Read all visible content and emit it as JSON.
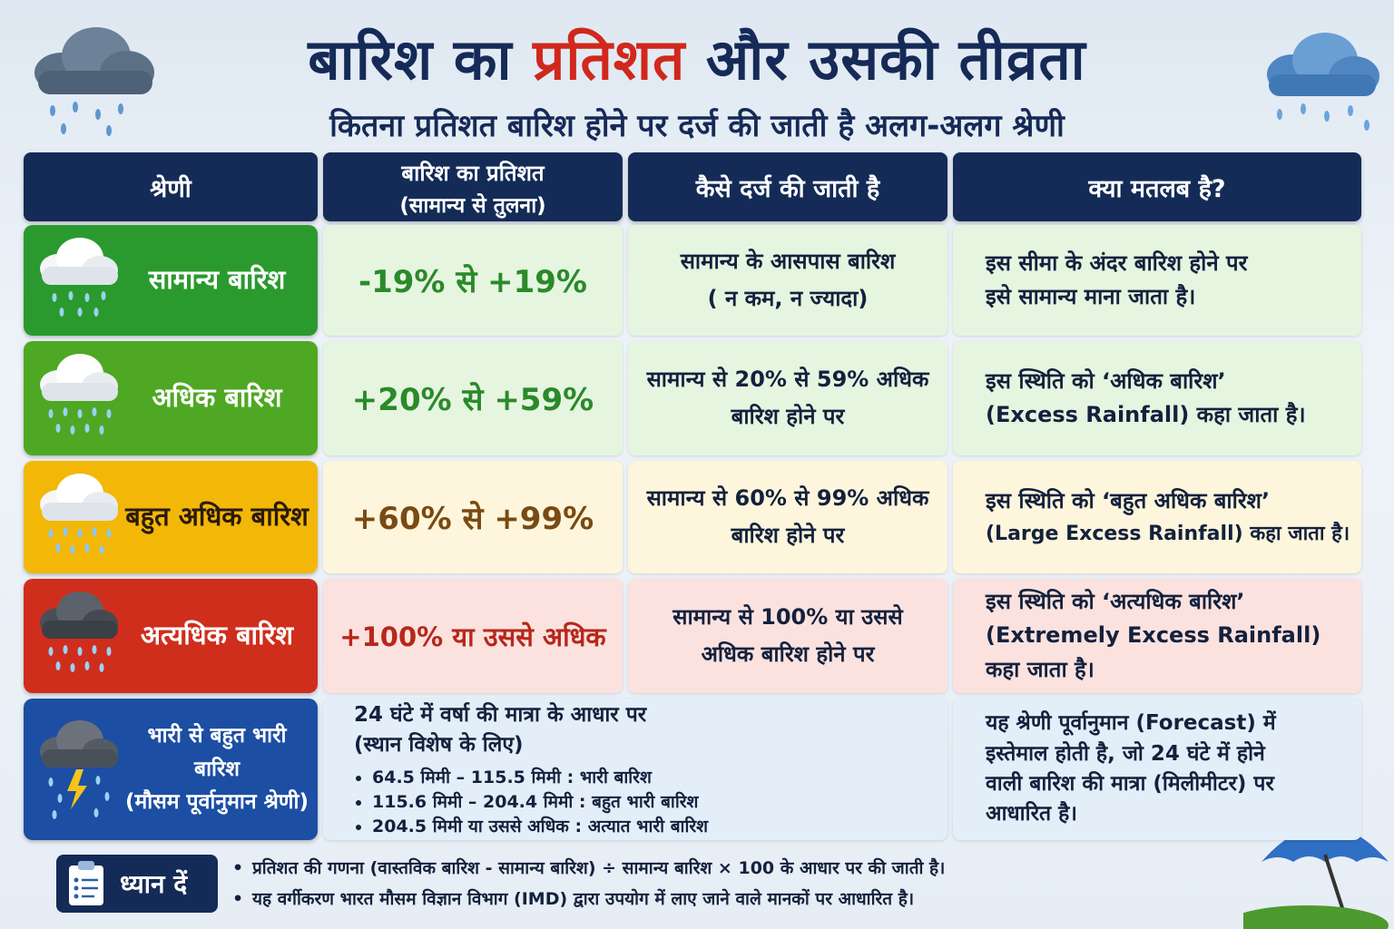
{
  "title_part1": "बारिश का ",
  "title_highlight": "प्रतिशत",
  "title_part2": " और उसकी तीव्रता",
  "subtitle": "कितना प्रतिशत बारिश होने पर दर्ज की जाती है अलग-अलग श्रेणी",
  "headers": {
    "category": "श्रेणी",
    "percent_line1": "बारिश का प्रतिशत",
    "percent_line2": "(सामान्य से तुलना)",
    "how": "कैसे दर्ज की जाती है",
    "meaning": "क्या मतलब है?"
  },
  "rows": [
    {
      "category": "सामान्य बारिश",
      "percent": "-19% से +19%",
      "how_1": "सामान्य के आसपास बारिश",
      "how_2": "( न कम, न ज्यादा)",
      "meaning_1": "इस सीमा के अंदर बारिश होने पर",
      "meaning_2": "इसे सामान्य माना जाता है।",
      "color": "#2a9a2e"
    },
    {
      "category": "अधिक बारिश",
      "percent": "+20% से +59%",
      "how_1": "सामान्य से 20% से 59% अधिक",
      "how_2": "बारिश होने पर",
      "meaning_1": "इस स्थिति को ‘अधिक बारिश’",
      "meaning_2": "(Excess Rainfall) कहा जाता है।",
      "color": "#4ea823"
    },
    {
      "category": "बहुत अधिक बारिश",
      "percent": "+60% से +99%",
      "how_1": "सामान्य से 60% से 99% अधिक",
      "how_2": "बारिश होने पर",
      "meaning_1": "इस स्थिति को ‘बहुत अधिक बारिश’",
      "meaning_2": "(Large Excess Rainfall) कहा जाता है।",
      "color": "#f2b707"
    },
    {
      "category": "अत्यधिक बारिश",
      "percent": "+100% या उससे अधिक",
      "how_1": "सामान्य से 100% या उससे",
      "how_2": "अधिक बारिश होने पर",
      "meaning_1": "इस स्थिति को ‘अत्यधिक बारिश’",
      "meaning_2": "(Extremely Excess Rainfall)",
      "meaning_3": "कहा जाता है।",
      "color": "#cf2e1d"
    }
  ],
  "heavy": {
    "category_1": "भारी से बहुत भारी बारिश",
    "category_2": "(मौसम पूर्वानुमान श्रेणी)",
    "intro_1": "24 घंटे में वर्षा की मात्रा के आधार पर",
    "intro_2": "(स्थान विशेष के लिए)",
    "items": [
      "64.5 मिमी – 115.5 मिमी : भारी बारिश",
      "115.6 मिमी – 204.4 मिमी : बहुत भारी बारिश",
      "204.5 मिमी या उससे अधिक : अत्यात भारी बारिश"
    ],
    "meaning_1": "यह श्रेणी पूर्वानुमान (Forecast) में",
    "meaning_2": "इस्तेमाल होती है, जो 24 घंटे में होने",
    "meaning_3": "वाली बारिश की मात्रा (मिलीमीटर) पर",
    "meaning_4": "आधारित है।",
    "color": "#1c4ea3"
  },
  "note": {
    "label": "ध्यान दें",
    "lines": [
      "प्रतिशत की गणना (वास्तविक बारिश - सामान्य बारिश) ÷ सामान्य बारिश × 100 के आधार पर की जाती है।",
      "यह वर्गीकरण भारत मौसम विज्ञान विभाग (IMD) द्वारा उपयोग में लाए जाने वाले मानकों पर आधारित है।"
    ]
  }
}
